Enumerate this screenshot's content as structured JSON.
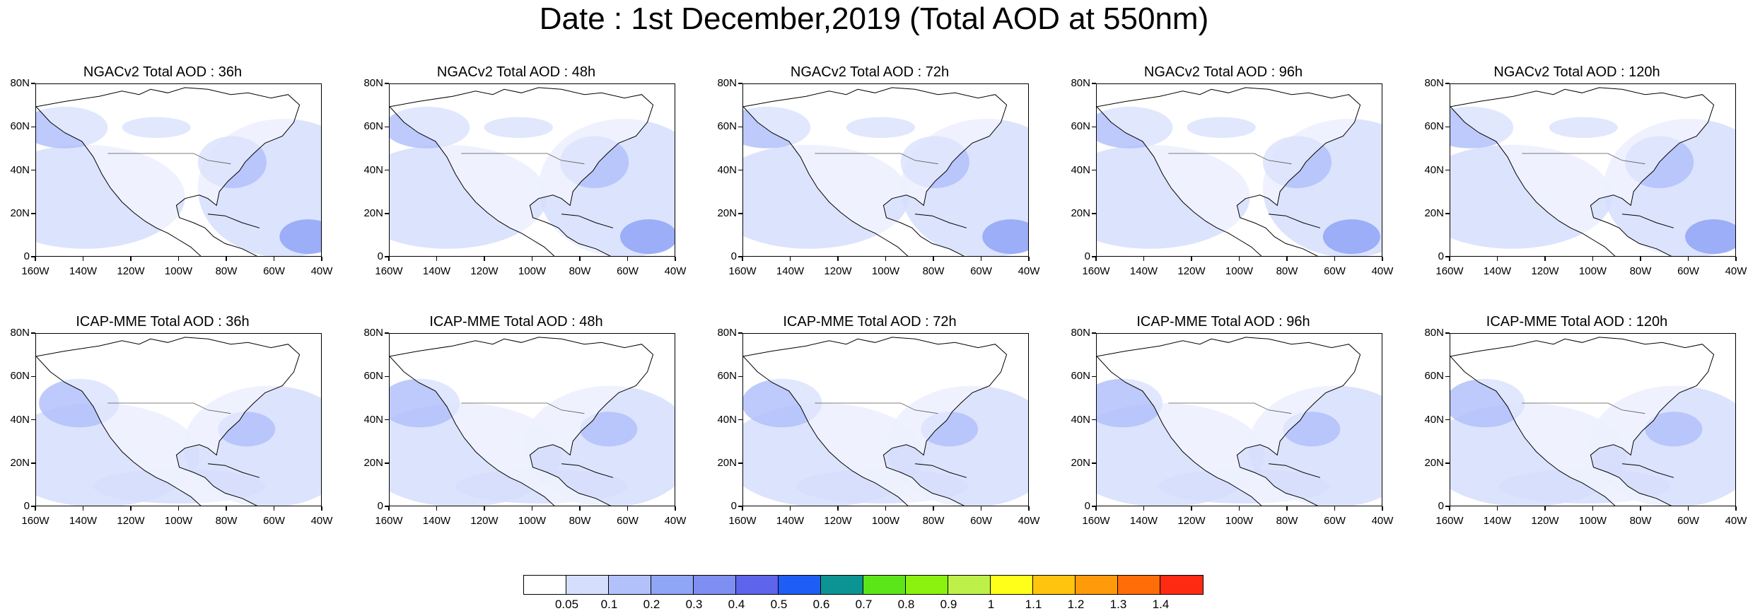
{
  "title": "Date : 1st December,2019 (Total AOD at 550nm)",
  "panels": [
    {
      "label": "NGACv2 Total AOD : 36h",
      "model": "NGACv2",
      "lead": "36h"
    },
    {
      "label": "NGACv2 Total AOD : 48h",
      "model": "NGACv2",
      "lead": "48h"
    },
    {
      "label": "NGACv2 Total AOD : 72h",
      "model": "NGACv2",
      "lead": "72h"
    },
    {
      "label": "NGACv2 Total AOD : 96h",
      "model": "NGACv2",
      "lead": "96h"
    },
    {
      "label": "NGACv2 Total AOD : 120h",
      "model": "NGACv2",
      "lead": "120h"
    },
    {
      "label": "ICAP-MME Total AOD : 36h",
      "model": "ICAP-MME",
      "lead": "36h"
    },
    {
      "label": "ICAP-MME Total AOD : 48h",
      "model": "ICAP-MME",
      "lead": "48h"
    },
    {
      "label": "ICAP-MME Total AOD : 72h",
      "model": "ICAP-MME",
      "lead": "72h"
    },
    {
      "label": "ICAP-MME Total AOD : 96h",
      "model": "ICAP-MME",
      "lead": "96h"
    },
    {
      "label": "ICAP-MME Total AOD : 120h",
      "model": "ICAP-MME",
      "lead": "120h"
    }
  ],
  "axes": {
    "y_labels": [
      "80N",
      "60N",
      "40N",
      "20N",
      "0"
    ],
    "x_labels": [
      "160W",
      "140W",
      "120W",
      "100W",
      "80W",
      "60W",
      "40W"
    ]
  },
  "colorbar": {
    "colors": [
      "#ffffff",
      "#d6defd",
      "#b2c1fa",
      "#8fa5f6",
      "#7f8ef1",
      "#5e64ec",
      "#1f5ef4",
      "#0c9494",
      "#5be61a",
      "#8af20e",
      "#bdf049",
      "#ffff1a",
      "#ffc40d",
      "#ff9a0a",
      "#ff6d08",
      "#ff2a12"
    ],
    "labels": [
      "0.05",
      "0.1",
      "0.2",
      "0.3",
      "0.4",
      "0.5",
      "0.6",
      "0.7",
      "0.8",
      "0.9",
      "1",
      "1.1",
      "1.2",
      "1.3",
      "1.4"
    ]
  },
  "colors": {
    "aod_light": "#d6defd",
    "aod_mid": "#b2c1fa",
    "aod_high": "#8fa5f6",
    "aod_peak": "#5e64ec",
    "coastline": "#000000"
  }
}
